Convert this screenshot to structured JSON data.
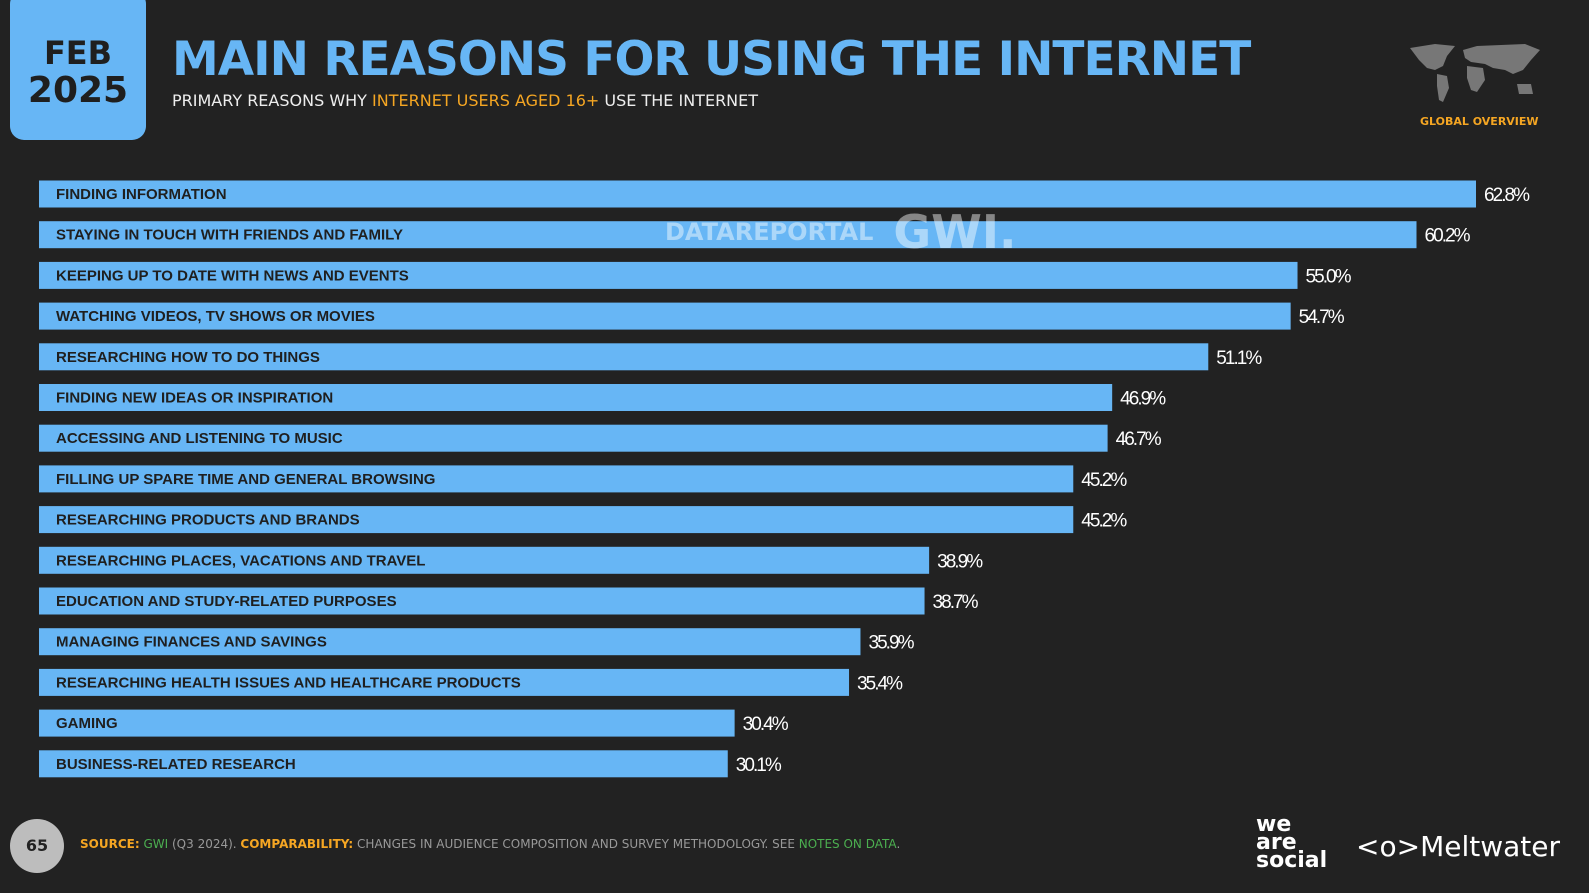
{
  "header": {
    "month": "FEB",
    "year": "2025",
    "title": "MAIN REASONS FOR USING THE INTERNET",
    "subtitle_pre": "PRIMARY REASONS WHY ",
    "subtitle_highlight": "INTERNET USERS AGED 16+",
    "subtitle_post": " USE THE INTERNET",
    "region_label": "GLOBAL OVERVIEW"
  },
  "watermark": {
    "datareportal": "DATAREPORTAL",
    "gwi": "GWI."
  },
  "chart_data": {
    "type": "bar",
    "orientation": "horizontal",
    "bar_color": "#67b6f5",
    "categories": [
      "FINDING INFORMATION",
      "STAYING IN TOUCH WITH FRIENDS AND FAMILY",
      "KEEPING UP TO DATE WITH NEWS AND EVENTS",
      "WATCHING VIDEOS, TV SHOWS OR MOVIES",
      "RESEARCHING HOW TO DO THINGS",
      "FINDING NEW IDEAS OR INSPIRATION",
      "ACCESSING AND LISTENING TO MUSIC",
      "FILLING UP SPARE TIME AND GENERAL BROWSING",
      "RESEARCHING PRODUCTS AND BRANDS",
      "RESEARCHING PLACES, VACATIONS AND TRAVEL",
      "EDUCATION AND STUDY-RELATED PURPOSES",
      "MANAGING FINANCES AND SAVINGS",
      "RESEARCHING HEALTH ISSUES AND HEALTHCARE PRODUCTS",
      "GAMING",
      "BUSINESS-RELATED RESEARCH"
    ],
    "values": [
      62.8,
      60.2,
      55.0,
      54.7,
      51.1,
      46.9,
      46.7,
      45.2,
      45.2,
      38.9,
      38.7,
      35.9,
      35.4,
      30.4,
      30.1
    ],
    "labels": [
      "62.8%",
      "60.2%",
      "55.0%",
      "54.7%",
      "51.1%",
      "46.9%",
      "46.7%",
      "45.2%",
      "45.2%",
      "38.9%",
      "38.7%",
      "35.9%",
      "35.4%",
      "30.4%",
      "30.1%"
    ],
    "xlim": [
      0,
      62.8
    ]
  },
  "footer": {
    "page": "65",
    "source_label": "SOURCE:",
    "source": "GWI",
    "source_detail": " (Q3 2024). ",
    "comparability_label": "COMPARABILITY:",
    "comparability": " CHANGES IN AUDIENCE COMPOSITION AND SURVEY METHODOLOGY. SEE ",
    "notes_link": "NOTES ON DATA",
    "end": "."
  },
  "logos": {
    "we_are_social": "we are social",
    "meltwater": "Meltwater"
  }
}
